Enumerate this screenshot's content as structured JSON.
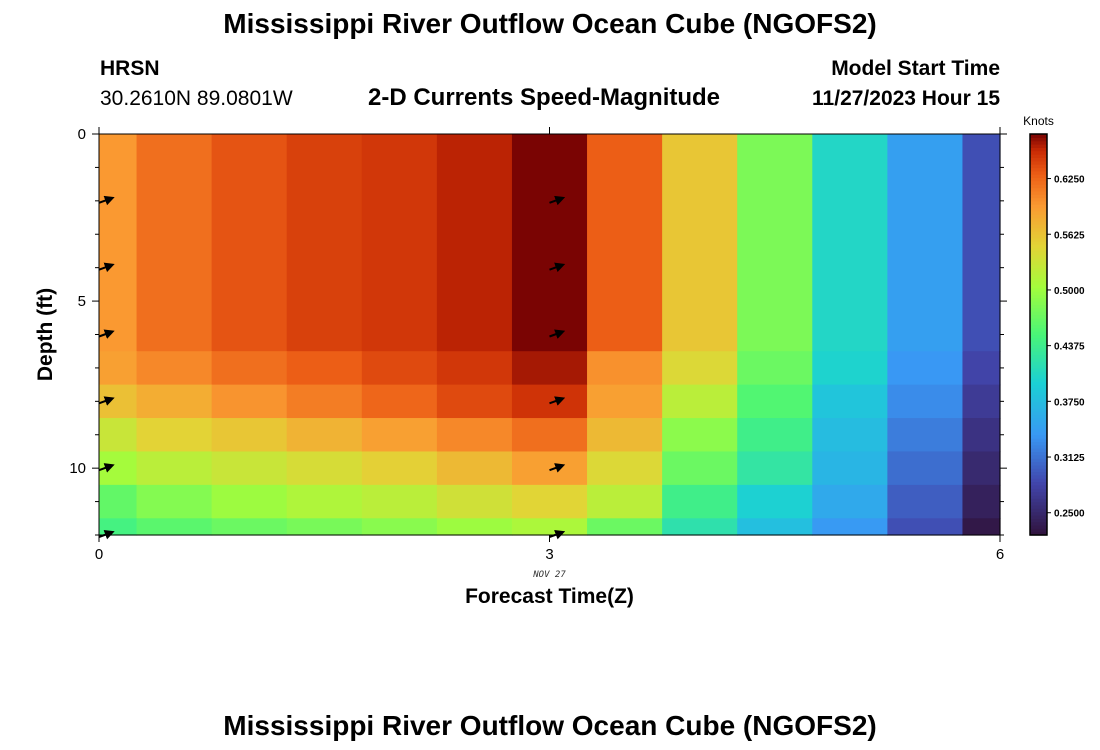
{
  "header": {
    "title": "Mississippi River Outflow Ocean Cube (NGOFS2)",
    "station_id": "HRSN",
    "coordinates": "30.2610N  89.0801W",
    "subtitle": "2-D Currents Speed-Magnitude",
    "start_label": "Model Start Time",
    "start_value": "11/27/2023 Hour 15"
  },
  "footer": {
    "title": "Mississippi River Outflow Ocean Cube (NGOFS2)"
  },
  "chart_data": {
    "type": "heatmap",
    "title": "2-D Currents Speed-Magnitude",
    "xlabel": "Forecast Time(Z)",
    "ylabel": "Depth (ft)",
    "x_date_label": "NOV 27",
    "xlim": [
      0,
      6
    ],
    "ylim": [
      12,
      0
    ],
    "x_ticks": [
      0,
      3,
      6
    ],
    "y_ticks": [
      0,
      5,
      10
    ],
    "x_edges": [
      0,
      0.25,
      0.75,
      1.25,
      1.75,
      2.25,
      2.75,
      3.25,
      3.75,
      4.25,
      4.75,
      5.25,
      5.75,
      6
    ],
    "depth_edges": [
      0,
      6.5,
      7.5,
      8.5,
      9.5,
      10.5,
      11.5,
      12
    ],
    "colorbar": {
      "label": "Knots",
      "min": 0.225,
      "max": 0.675,
      "ticks": [
        "0.2500",
        "0.3125",
        "0.3750",
        "0.4375",
        "0.5000",
        "0.5625",
        "0.6250"
      ],
      "tick_values": [
        0.25,
        0.3125,
        0.375,
        0.4375,
        0.5,
        0.5625,
        0.625
      ]
    },
    "speed_knots": [
      [
        0.595,
        0.62,
        0.635,
        0.645,
        0.65,
        0.66,
        0.675,
        0.63,
        0.56,
        0.48,
        0.405,
        0.345,
        0.29
      ],
      [
        0.59,
        0.605,
        0.62,
        0.63,
        0.64,
        0.65,
        0.665,
        0.6,
        0.545,
        0.47,
        0.4,
        0.338,
        0.282
      ],
      [
        0.565,
        0.58,
        0.598,
        0.612,
        0.625,
        0.64,
        0.652,
        0.59,
        0.52,
        0.455,
        0.385,
        0.33,
        0.272
      ],
      [
        0.53,
        0.55,
        0.56,
        0.575,
        0.59,
        0.605,
        0.62,
        0.57,
        0.49,
        0.44,
        0.375,
        0.32,
        0.262
      ],
      [
        0.505,
        0.52,
        0.53,
        0.54,
        0.552,
        0.57,
        0.59,
        0.545,
        0.47,
        0.425,
        0.368,
        0.31,
        0.252
      ],
      [
        0.465,
        0.485,
        0.5,
        0.512,
        0.52,
        0.535,
        0.548,
        0.52,
        0.44,
        0.398,
        0.355,
        0.3,
        0.242
      ],
      [
        0.445,
        0.46,
        0.47,
        0.478,
        0.488,
        0.5,
        0.51,
        0.47,
        0.42,
        0.378,
        0.34,
        0.29,
        0.232
      ]
    ],
    "arrow_times": [
      0,
      3
    ],
    "arrow_depths": [
      2,
      4,
      6,
      8,
      10,
      12
    ]
  }
}
